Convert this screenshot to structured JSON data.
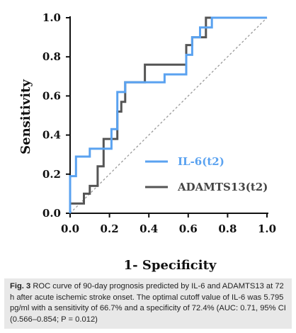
{
  "chart_data": {
    "type": "line",
    "xlabel": "1- Specificity",
    "ylabel": "Sensitivity",
    "xlim": [
      0.0,
      1.0
    ],
    "ylim": [
      0.0,
      1.0
    ],
    "xticks": [
      "0.0",
      "0.2",
      "0.4",
      "0.6",
      "0.8",
      "1.0"
    ],
    "yticks": [
      "0.0",
      "0.2",
      "0.4",
      "0.6",
      "0.8",
      "1.0"
    ],
    "grid": false,
    "legend_position": "center-right",
    "reference_line": {
      "x": [
        0,
        1
      ],
      "y": [
        0,
        1
      ],
      "style": "dashed",
      "color": "#999999"
    },
    "series": [
      {
        "name": "IL-6(t2)",
        "color": "#5aa2f0",
        "x": [
          0,
          0,
          0.03,
          0.03,
          0.1,
          0.1,
          0.21,
          0.21,
          0.24,
          0.24,
          0.28,
          0.28,
          0.48,
          0.48,
          0.59,
          0.59,
          0.62,
          0.62,
          0.66,
          0.66,
          0.72,
          0.72,
          1.0
        ],
        "y": [
          0,
          0.19,
          0.19,
          0.29,
          0.29,
          0.33,
          0.33,
          0.43,
          0.43,
          0.62,
          0.62,
          0.67,
          0.67,
          0.71,
          0.71,
          0.81,
          0.81,
          0.9,
          0.9,
          0.95,
          0.95,
          1.0,
          1.0
        ]
      },
      {
        "name": "ADAMTS13(t2)",
        "color": "#555555",
        "x": [
          0,
          0.07,
          0.07,
          0.1,
          0.1,
          0.14,
          0.14,
          0.17,
          0.17,
          0.17,
          0.24,
          0.24,
          0.26,
          0.26,
          0.28,
          0.28,
          0.38,
          0.38,
          0.59,
          0.59,
          0.62,
          0.62,
          0.69,
          0.69,
          1.0
        ],
        "y": [
          0.05,
          0.05,
          0.1,
          0.1,
          0.14,
          0.14,
          0.24,
          0.24,
          0.38,
          0.38,
          0.38,
          0.52,
          0.52,
          0.57,
          0.57,
          0.67,
          0.67,
          0.76,
          0.76,
          0.86,
          0.86,
          0.9,
          0.9,
          1.0,
          1.0
        ]
      }
    ]
  },
  "caption": {
    "label": "Fig. 3",
    "text": "ROC curve of 90-day prognosis predicted by IL-6 and ADAMTS13 at 72 h after acute ischemic stroke onset. The optimal cutoff value of IL-6 was 5.795 pg/ml with a sensitivity of 66.7% and a specificity of 72.4% (AUC: 0.71, 95% CI (0.566–0.854; P = 0.012)"
  }
}
